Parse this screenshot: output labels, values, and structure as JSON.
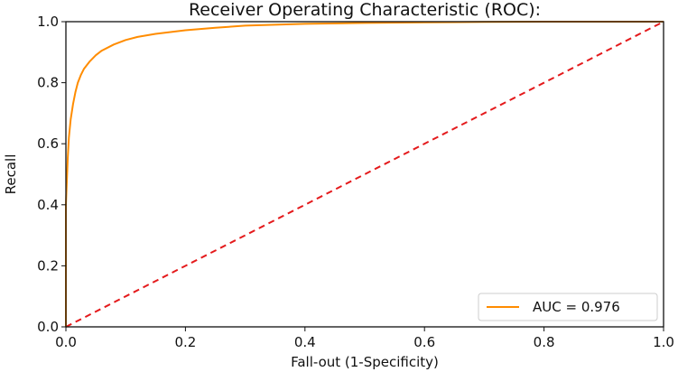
{
  "chart_data": {
    "type": "line",
    "title": "Receiver Operating Characteristic (ROC):",
    "xlabel": "Fall-out (1-Specificity)",
    "ylabel": "Recall",
    "xlim": [
      0.0,
      1.0
    ],
    "ylim": [
      0.0,
      1.0
    ],
    "xticks": [
      "0.0",
      "0.2",
      "0.4",
      "0.6",
      "0.8",
      "1.0"
    ],
    "yticks": [
      "0.0",
      "0.2",
      "0.4",
      "0.6",
      "0.8",
      "1.0"
    ],
    "grid": false,
    "legend": {
      "placement": "lower-right"
    },
    "series": [
      {
        "name": "AUC = 0.976",
        "color": "#ff8c00",
        "style": "solid",
        "x": [
          0.0,
          0.0,
          0.003,
          0.005,
          0.008,
          0.012,
          0.016,
          0.02,
          0.025,
          0.03,
          0.04,
          0.05,
          0.06,
          0.08,
          0.1,
          0.12,
          0.15,
          0.2,
          0.25,
          0.3,
          0.4,
          0.5,
          0.6,
          0.7,
          0.8,
          0.9,
          1.0
        ],
        "y": [
          0.0,
          0.4,
          0.55,
          0.62,
          0.68,
          0.73,
          0.77,
          0.8,
          0.825,
          0.845,
          0.87,
          0.89,
          0.905,
          0.925,
          0.94,
          0.95,
          0.96,
          0.972,
          0.98,
          0.987,
          0.993,
          0.996,
          0.998,
          0.999,
          1.0,
          1.0,
          1.0
        ]
      },
      {
        "name": "",
        "color": "#e41a1c",
        "style": "dashed",
        "x": [
          0.0,
          1.0
        ],
        "y": [
          0.0,
          1.0
        ]
      }
    ]
  }
}
